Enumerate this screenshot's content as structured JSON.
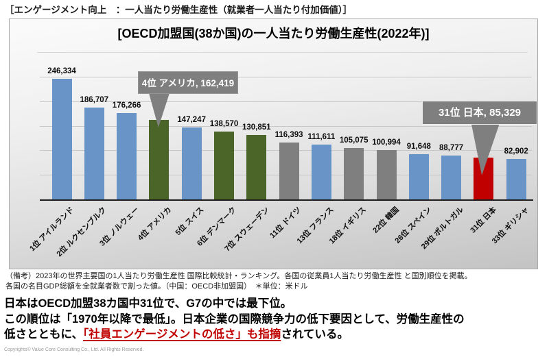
{
  "header": {
    "title": "［エンゲージメント向上　：一人当たり労働生産性（就業者一人当たり付加価値）］"
  },
  "chart": {
    "title": "[OECD加盟国(38か国)の一人当たり労働生産性(2022年)]",
    "callouts": [
      {
        "label": "4位 アメリカ, 162,419",
        "target_index": 3
      },
      {
        "label": "31位 日本, 85,329",
        "target_index": 13
      }
    ]
  },
  "chart_data": {
    "type": "bar",
    "title": "[OECD加盟国(38か国)の一人当たり労働生産性(2022年)]",
    "categories": [
      "1位 アイルランド",
      "2位 ルクセンブルク",
      "3位 ノルウェー",
      "4位 アメリカ",
      "5位 スイス",
      "6位 デンマーク",
      "7位 スウェーデン",
      "11位 ドイツ",
      "13位 フランス",
      "18位 イギリス",
      "22位 韓国",
      "26位 スペイン",
      "29位 ポルトガル",
      "31位 日本",
      "33位 ギリシャ"
    ],
    "values": [
      246334,
      186707,
      176266,
      162419,
      147247,
      138570,
      130851,
      116393,
      111611,
      105075,
      100994,
      91648,
      88777,
      85329,
      82902
    ],
    "value_labels": [
      "246,334",
      "186,707",
      "176,266",
      "162,419",
      "147,247",
      "138,570",
      "130,851",
      "116,393",
      "111,611",
      "105,075",
      "100,994",
      "91,648",
      "88,777",
      "85,329",
      "82,902"
    ],
    "bar_colors": [
      "#6994C8",
      "#6994C8",
      "#6994C8",
      "#4B6428",
      "#6994C8",
      "#4B6428",
      "#4B6428",
      "#7F7F7F",
      "#6994C8",
      "#7F7F7F",
      "#7F7F7F",
      "#6994C8",
      "#6994C8",
      "#C00000",
      "#6994C8"
    ],
    "unit": "米ドル",
    "xlabel": "",
    "ylabel": "",
    "ylim": [
      0,
      250000
    ],
    "gridline_interval": 50000,
    "grid": true,
    "legend": false,
    "accent_colors": {
      "blue": "#6994C8",
      "green": "#4B6428",
      "gray": "#7F7F7F",
      "red": "#C00000",
      "callout_bg": "#7F7F7F"
    }
  },
  "notes": {
    "line1": "（備考）2023年の世界主要国の1人当たり労働生産性 国際比較統計・ランキング。各国の従業員1人当たり労働生産性 と国別順位を掲載。",
    "line2": "各国の名目GDP総額を全就業者数で割った値。（中国：OECD非加盟国）　＊単位：米ドル"
  },
  "summary": {
    "line1": "日本はOECD加盟38カ国中31位で、G7の中では最下位。",
    "line2": "この順位は「1970年以降で最低」。日本企業の国際競争力の低下要因として、労働生産性の",
    "line3_prefix": "低さとともに、",
    "line3_highlight": "「社員エンゲージメントの低さ」も指摘",
    "line3_suffix": "されている。",
    "highlight_color": "#C00000"
  },
  "footer": {
    "copyright": "Copyrights© Value Core Consulting Co., Ltd. All Rights Reserved."
  }
}
